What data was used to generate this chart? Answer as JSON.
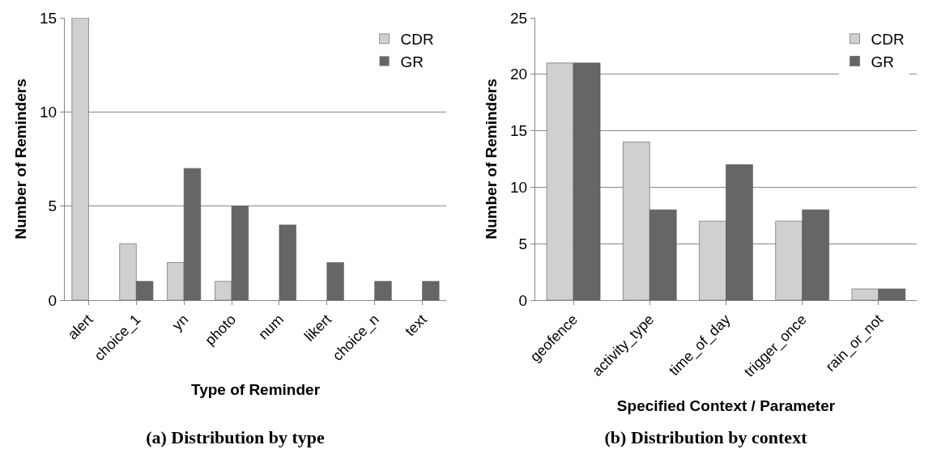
{
  "chart_data": [
    {
      "type": "bar",
      "title": "(a) Distribution by type",
      "xlabel": "Type of Reminder",
      "ylabel": "Number of Reminders",
      "categories": [
        "alert",
        "choice_1",
        "yn",
        "photo",
        "num",
        "likert",
        "choice_n",
        "text"
      ],
      "series": [
        {
          "name": "CDR",
          "color": "#d0d0d0",
          "values": [
            15,
            3,
            2,
            1,
            0,
            0,
            0,
            0
          ]
        },
        {
          "name": "GR",
          "color": "#666666",
          "values": [
            0,
            1,
            7,
            5,
            4,
            2,
            1,
            1
          ]
        }
      ],
      "ylim": [
        0,
        15
      ],
      "yticks": [
        0,
        5,
        10,
        15
      ],
      "grid": "y",
      "legend": "top right"
    },
    {
      "type": "bar",
      "title": "(b) Distribution by context",
      "xlabel": "Specified Context / Parameter",
      "ylabel": "Number of Reminders",
      "categories": [
        "geofence",
        "activity_type",
        "time_of_day",
        "trigger_once",
        "rain_or_not"
      ],
      "series": [
        {
          "name": "CDR",
          "color": "#d0d0d0",
          "values": [
            21,
            14,
            7,
            7,
            1
          ]
        },
        {
          "name": "GR",
          "color": "#666666",
          "values": [
            21,
            8,
            12,
            8,
            1
          ]
        }
      ],
      "ylim": [
        0,
        25
      ],
      "yticks": [
        0,
        5,
        10,
        15,
        20,
        25
      ],
      "grid": "y",
      "legend": "top right"
    }
  ]
}
